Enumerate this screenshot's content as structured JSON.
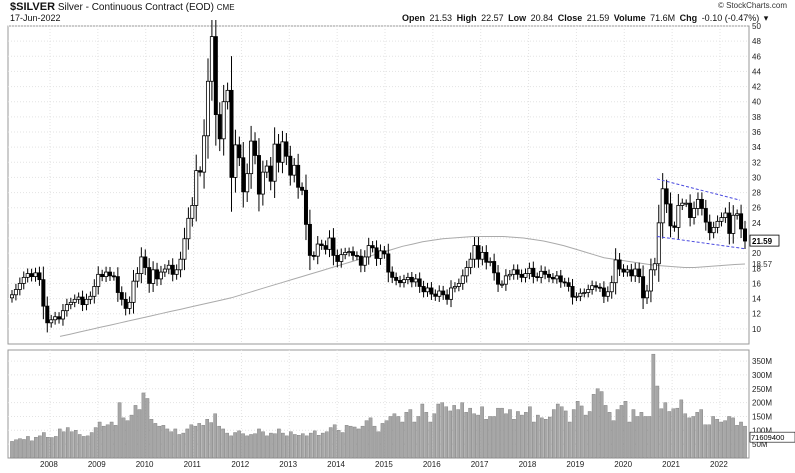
{
  "header": {
    "symbol": "$SILVER",
    "name": "Silver - Continuous Contract (EOD)",
    "exchange": "CME",
    "date": "17-Jun-2022",
    "copyright": "© StockCharts.com",
    "open_label": "Open",
    "open": "21.53",
    "high_label": "High",
    "high": "22.57",
    "low_label": "Low",
    "low": "20.84",
    "close_label": "Close",
    "close": "21.59",
    "volume_label": "Volume",
    "volume": "71.6M",
    "chg_label": "Chg",
    "chg": "-0.10 (-0.47%)"
  },
  "chart_data": [
    {
      "type": "candlestick",
      "interval": "monthly",
      "price_axis": {
        "ylim": [
          8,
          50
        ],
        "ticks": [
          10,
          12,
          14,
          16,
          18,
          20,
          22,
          24,
          26,
          28,
          30,
          32,
          34,
          36,
          38,
          40,
          42,
          44,
          46,
          48,
          50
        ]
      },
      "x_ticks": [
        "2008",
        "2009",
        "2010",
        "2011",
        "2012",
        "2013",
        "2014",
        "2015",
        "2016",
        "2017",
        "2018",
        "2019",
        "2020",
        "2021",
        "2022"
      ],
      "last_price_label": "21.59",
      "moving_average_label": "18.57",
      "closes": [
        14.5,
        15.2,
        16.0,
        16.8,
        17.3,
        16.9,
        17.4,
        16.5,
        13.0,
        10.8,
        11.2,
        11.6,
        11.3,
        12.4,
        13.2,
        13.5,
        13.9,
        14.2,
        13.2,
        13.9,
        14.3,
        15.6,
        17.2,
        16.9,
        17.5,
        17.0,
        16.9,
        14.8,
        13.9,
        12.7,
        13.5,
        16.3,
        17.3,
        19.5,
        18.1,
        16.0,
        17.8,
        16.6,
        17.5,
        17.9,
        18.4,
        17.2,
        17.8,
        19.2,
        21.9,
        24.6,
        26.3,
        30.9,
        30.7,
        35.5,
        42.7,
        48.6,
        38.3,
        35.1,
        40.0,
        41.5,
        30.0,
        34.3,
        32.6,
        28.1,
        30.5,
        34.8,
        32.9,
        27.8,
        30.7,
        31.5,
        29.5,
        34.4,
        32.0,
        34.7,
        32.8,
        30.3,
        31.6,
        28.7,
        28.3,
        23.8,
        19.7,
        19.6,
        21.2,
        21.0,
        20.5,
        22.0,
        19.7,
        18.9,
        19.8,
        20.1,
        20.2,
        19.7,
        19.6,
        18.4,
        19.5,
        21.0,
        20.7,
        19.3,
        20.3,
        19.9,
        17.5,
        16.8,
        16.4,
        16.1,
        16.5,
        16.8,
        16.2,
        16.6,
        15.6,
        14.9,
        15.4,
        14.6,
        14.3,
        15.0,
        14.5,
        13.9,
        15.4,
        15.6,
        16.0,
        17.0,
        18.1,
        19.2,
        21.0,
        19.2,
        20.1,
        18.8,
        18.9,
        17.4,
        15.9,
        15.9,
        17.0,
        17.2,
        17.8,
        17.2,
        16.8,
        17.3,
        18.0,
        16.9,
        16.8,
        17.6,
        17.2,
        16.8,
        16.6,
        17.0,
        16.2,
        16.1,
        15.6,
        14.2,
        14.3,
        14.7,
        14.8,
        15.2,
        15.7,
        15.5,
        15.4,
        14.3,
        14.9,
        16.1,
        19.1,
        17.9,
        17.5,
        17.8,
        17.0,
        17.9,
        16.9,
        14.1,
        15.0,
        17.8,
        18.6,
        24.0,
        28.5,
        26.5,
        23.6,
        23.4,
        26.3,
        26.6,
        26.6,
        24.7,
        25.9,
        27.1,
        25.9,
        24.1,
        22.7,
        23.4,
        24.2,
        24.7,
        25.3,
        22.6,
        25.0,
        25.2,
        23.2,
        21.6
      ]
    },
    {
      "type": "bar",
      "series_name": "Volume",
      "volume_axis": {
        "ylim": [
          0,
          390
        ],
        "ticks": [
          "50M",
          "100M",
          "150M",
          "200M",
          "250M",
          "300M",
          "350M"
        ]
      },
      "last_volume_label": "71609400",
      "values_millions": [
        60,
        66,
        70,
        67,
        78,
        62,
        75,
        80,
        92,
        75,
        74,
        78,
        105,
        95,
        110,
        95,
        100,
        85,
        78,
        80,
        92,
        110,
        130,
        115,
        120,
        130,
        118,
        200,
        145,
        135,
        155,
        190,
        175,
        235,
        215,
        140,
        125,
        115,
        118,
        105,
        95,
        105,
        85,
        90,
        105,
        120,
        115,
        125,
        118,
        140,
        128,
        160,
        115,
        105,
        90,
        80,
        92,
        98,
        88,
        80,
        85,
        88,
        105,
        95,
        80,
        90,
        88,
        105,
        90,
        80,
        95,
        85,
        82,
        88,
        80,
        90,
        98,
        82,
        90,
        95,
        110,
        120,
        100,
        92,
        118,
        115,
        112,
        105,
        115,
        135,
        145,
        115,
        95,
        125,
        135,
        150,
        160,
        150,
        130,
        165,
        175,
        130,
        150,
        195,
        165,
        130,
        160,
        195,
        200,
        185,
        170,
        190,
        175,
        200,
        165,
        180,
        160,
        155,
        185,
        140,
        150,
        150,
        180,
        180,
        160,
        175,
        140,
        168,
        155,
        165,
        185,
        130,
        155,
        145,
        140,
        148,
        175,
        195,
        185,
        170,
        130,
        175,
        205,
        188,
        155,
        168,
        230,
        250,
        240,
        190,
        165,
        135,
        175,
        190,
        205,
        130,
        175,
        150,
        165,
        150,
        150,
        375,
        260,
        178,
        200,
        168,
        178,
        180,
        210,
        160,
        145,
        150,
        165,
        175,
        120,
        120,
        150,
        140,
        130,
        135,
        150,
        145,
        118,
        130,
        115
      ]
    },
    {
      "type": "line",
      "series_name": "moving average",
      "values": [
        9.0,
        9.3,
        9.6,
        9.9,
        10.2,
        10.5,
        10.8,
        11.1,
        11.4,
        11.7,
        12.0,
        12.3,
        12.6,
        12.9,
        13.2,
        13.5,
        13.8,
        14.1,
        14.5,
        14.9,
        15.3,
        15.7,
        16.1,
        16.5,
        16.9,
        17.3,
        17.7,
        18.1,
        18.5,
        18.9,
        19.3,
        19.7,
        20.1,
        20.5,
        20.9,
        21.2,
        21.5,
        21.7,
        21.9,
        22.0,
        22.1,
        22.2,
        22.2,
        22.2,
        22.2,
        22.1,
        22.0,
        21.8,
        21.6,
        21.3,
        21.0,
        20.6,
        20.2,
        19.8,
        19.4,
        19.2,
        19.0,
        18.8,
        18.6,
        18.4,
        18.3,
        18.2,
        18.1,
        18.1,
        18.2,
        18.3,
        18.4,
        18.5,
        18.57
      ]
    }
  ]
}
